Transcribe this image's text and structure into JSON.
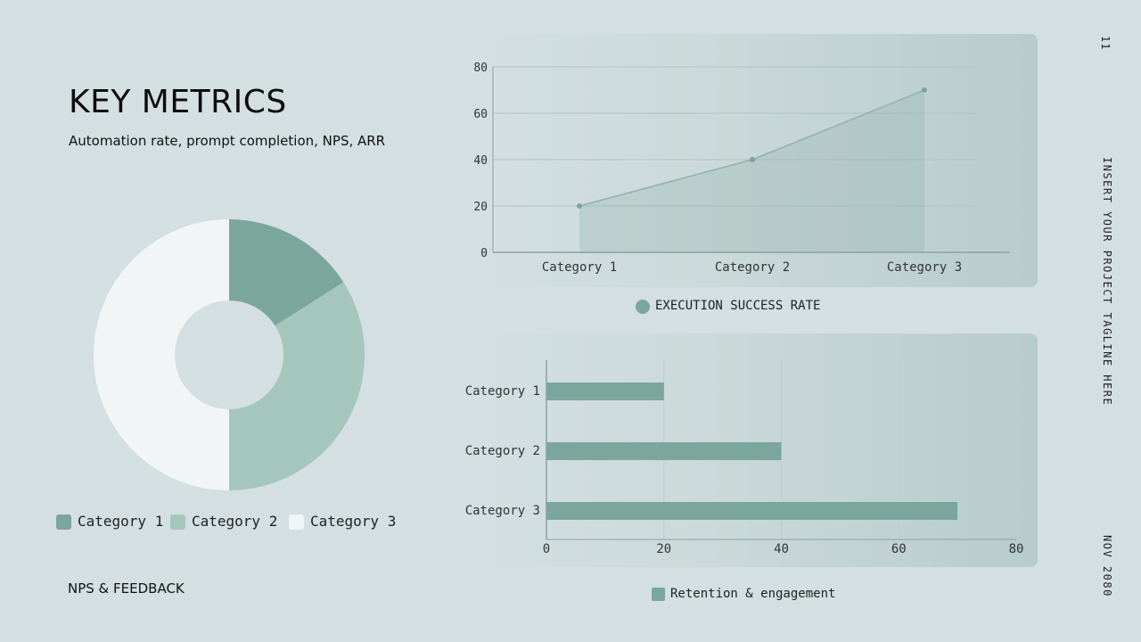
{
  "header": {
    "title": "KEY METRICS",
    "subtitle": "Automation rate, prompt completion, NPS, ARR"
  },
  "footer": {
    "left_label": "NPS & FEEDBACK"
  },
  "side": {
    "page_number": "11",
    "tagline": "INSERT YOUR PROJECT TAGLINE HERE",
    "date": "NOV 2080"
  },
  "colors": {
    "accent": "#7ba69c",
    "accent_light": "#a4c6bd",
    "white_slice": "#f2f5f6"
  },
  "chart_data": [
    {
      "type": "pie",
      "variant": "donut",
      "categories": [
        "Category 1",
        "Category 2",
        "Category 3"
      ],
      "values": [
        16,
        34,
        50
      ],
      "legend_position": "bottom"
    },
    {
      "type": "area",
      "categories": [
        "Category 1",
        "Category 2",
        "Category 3"
      ],
      "series": [
        {
          "name": "EXECUTION SUCCESS RATE",
          "values": [
            20,
            40,
            70
          ]
        }
      ],
      "ylim": [
        0,
        80
      ],
      "yticks": [
        0,
        20,
        40,
        60,
        80
      ],
      "grid": true,
      "legend_position": "bottom"
    },
    {
      "type": "bar",
      "orientation": "horizontal",
      "categories": [
        "Category 1",
        "Category 2",
        "Category 3"
      ],
      "series": [
        {
          "name": "Retention & engagement",
          "values": [
            20,
            40,
            70
          ]
        }
      ],
      "xlim": [
        0,
        80
      ],
      "xticks": [
        0,
        20,
        40,
        60,
        80
      ],
      "grid": true,
      "legend_position": "bottom"
    }
  ]
}
